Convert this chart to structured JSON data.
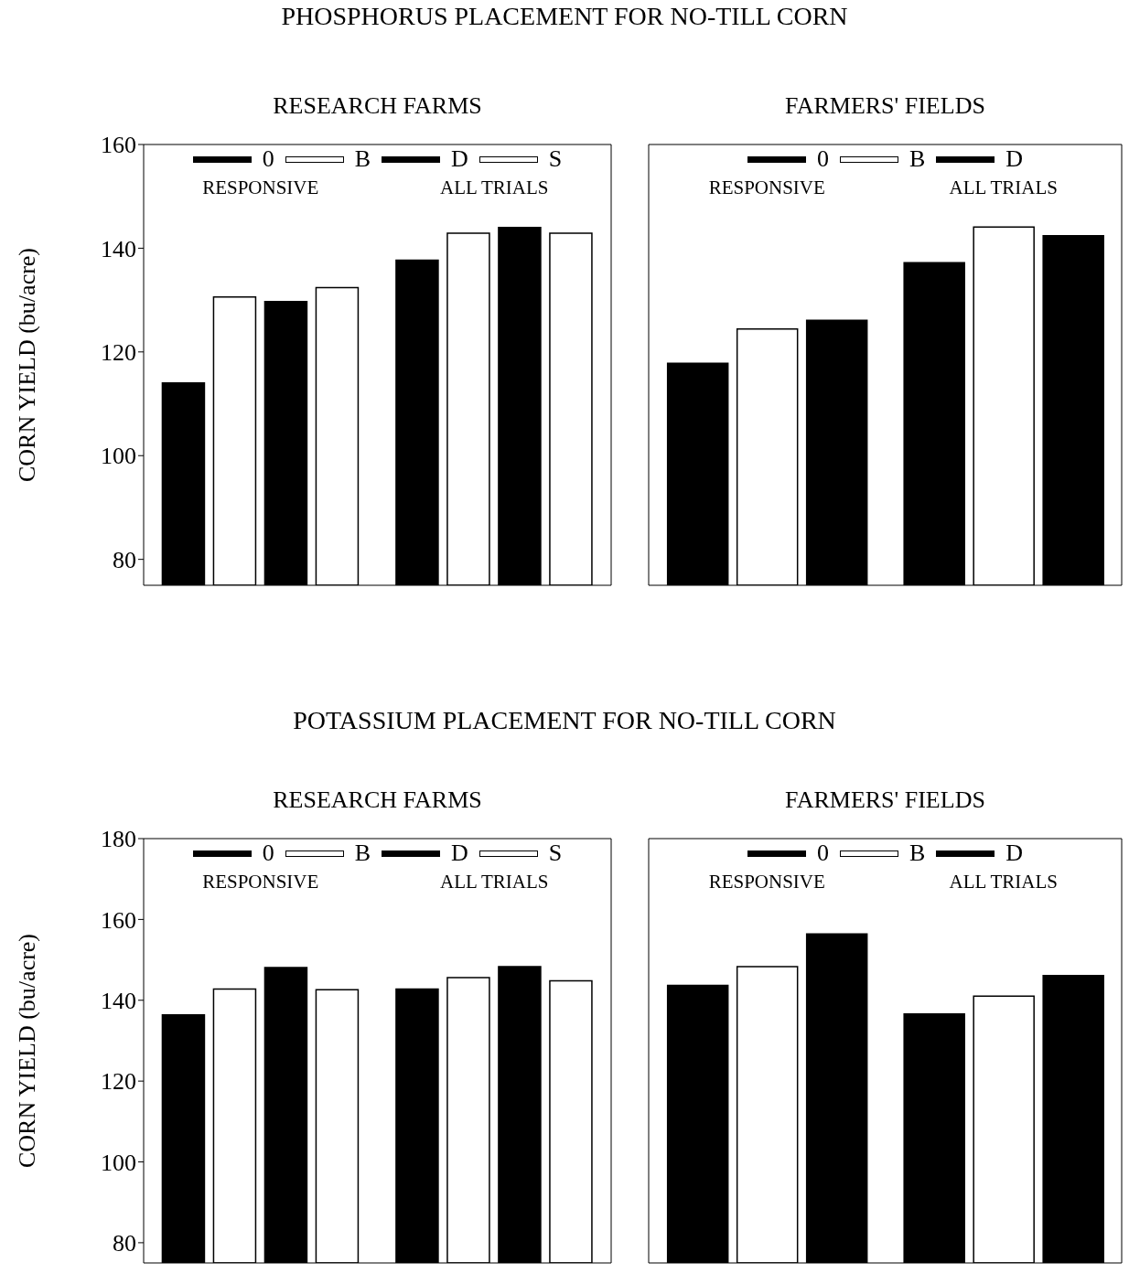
{
  "chart_data": [
    {
      "type": "bar",
      "title": "PHOSPHORUS PLACEMENT FOR NO-TILL CORN",
      "subtitle": "RESEARCH FARMS",
      "ylabel": "CORN YIELD (bu/acre)",
      "categories": [
        "RESPONSIVE",
        "ALL TRIALS"
      ],
      "series": [
        {
          "name": "0",
          "color": "#000000",
          "values": [
            114,
            137.7
          ]
        },
        {
          "name": "B",
          "color": "#ffffff",
          "values": [
            130.6,
            142.9
          ]
        },
        {
          "name": "D",
          "color": "#000000",
          "values": [
            129.7,
            144
          ]
        },
        {
          "name": "S",
          "color": "#ffffff",
          "values": [
            132.4,
            142.9
          ]
        }
      ],
      "ylim": [
        75,
        160
      ],
      "yticks": [
        80,
        100,
        120,
        140,
        160
      ],
      "legend": "top",
      "grid": false
    },
    {
      "type": "bar",
      "subtitle": "FARMERS' FIELDS",
      "categories": [
        "RESPONSIVE",
        "ALL TRIALS"
      ],
      "series": [
        {
          "name": "0",
          "color": "#000000",
          "values": [
            117.8,
            137.2
          ]
        },
        {
          "name": "B",
          "color": "#ffffff",
          "values": [
            124.4,
            144.1
          ]
        },
        {
          "name": "D",
          "color": "#000000",
          "values": [
            126.1,
            142.4
          ]
        }
      ],
      "ylim": [
        75,
        160
      ],
      "yticks": [
        80,
        100,
        120,
        140,
        160
      ],
      "tick_labels": "x",
      "legend": "top",
      "grid": false
    },
    {
      "type": "bar",
      "title": "POTASSIUM PLACEMENT FOR NO-TILL CORN",
      "subtitle": "RESEARCH FARMS",
      "ylabel": "CORN YIELD (bu/acre)",
      "categories": [
        "RESPONSIVE",
        "ALL TRIALS"
      ],
      "series": [
        {
          "name": "0",
          "color": "#000000",
          "values": [
            136.4,
            142.8
          ]
        },
        {
          "name": "B",
          "color": "#ffffff",
          "values": [
            142.8,
            145.6
          ]
        },
        {
          "name": "D",
          "color": "#000000",
          "values": [
            148.1,
            148.3
          ]
        },
        {
          "name": "S",
          "color": "#ffffff",
          "values": [
            142.6,
            144.8
          ]
        }
      ],
      "ylim": [
        75,
        180
      ],
      "yticks": [
        80,
        100,
        120,
        140,
        160,
        180
      ],
      "legend": "top",
      "grid": false
    },
    {
      "type": "bar",
      "subtitle": "FARMERS' FIELDS",
      "categories": [
        "RESPONSIVE",
        "ALL TRIALS"
      ],
      "series": [
        {
          "name": "0",
          "color": "#000000",
          "values": [
            143.7,
            136.6
          ]
        },
        {
          "name": "B",
          "color": "#ffffff",
          "values": [
            148.3,
            141
          ]
        },
        {
          "name": "D",
          "color": "#000000",
          "values": [
            156.4,
            146.1
          ]
        }
      ],
      "ylim": [
        75,
        180
      ],
      "yticks": [
        80,
        100,
        120,
        140,
        160,
        180
      ],
      "tick_labels": "x",
      "legend": "top",
      "grid": false
    }
  ]
}
